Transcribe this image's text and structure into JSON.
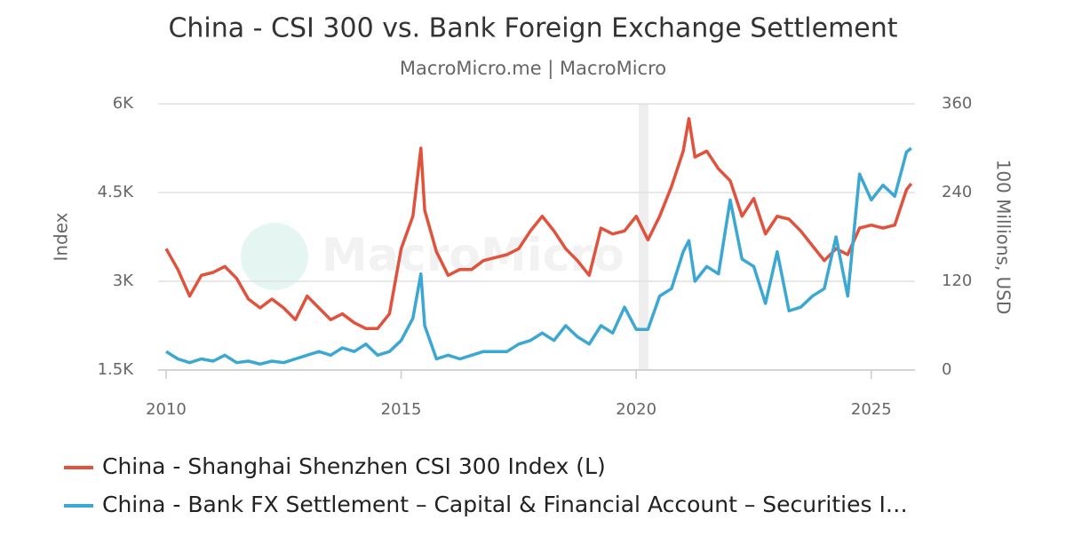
{
  "chart_data": {
    "type": "line",
    "title": "China - CSI 300 vs. Bank Foreign Exchange Settlement",
    "subtitle": "MacroMicro.me | MacroMicro",
    "watermark": "MacroMicro",
    "y_label": "Index",
    "y2_label": "100 Millions, USD",
    "x": [
      2010.0,
      2010.25,
      2010.5,
      2010.75,
      2011.0,
      2011.25,
      2011.5,
      2011.75,
      2012.0,
      2012.25,
      2012.5,
      2012.75,
      2013.0,
      2013.25,
      2013.5,
      2013.75,
      2014.0,
      2014.25,
      2014.5,
      2014.75,
      2015.0,
      2015.25,
      2015.42,
      2015.5,
      2015.75,
      2016.0,
      2016.25,
      2016.5,
      2016.75,
      2017.0,
      2017.25,
      2017.5,
      2017.75,
      2018.0,
      2018.25,
      2018.5,
      2018.75,
      2019.0,
      2019.25,
      2019.5,
      2019.75,
      2020.0,
      2020.25,
      2020.5,
      2020.75,
      2021.0,
      2021.12,
      2021.25,
      2021.5,
      2021.75,
      2022.0,
      2022.25,
      2022.5,
      2022.75,
      2023.0,
      2023.25,
      2023.5,
      2023.75,
      2024.0,
      2024.25,
      2024.5,
      2024.75,
      2025.0,
      2025.25,
      2025.5,
      2025.75,
      2025.85
    ],
    "series": [
      {
        "name": "China - Shanghai Shenzhen CSI 300 Index (L)",
        "color": "#e1523d",
        "axis": "y",
        "values": [
          3550,
          3200,
          2750,
          3100,
          3150,
          3250,
          3050,
          2700,
          2550,
          2700,
          2550,
          2350,
          2750,
          2550,
          2350,
          2450,
          2300,
          2200,
          2200,
          2450,
          3550,
          4100,
          5250,
          4200,
          3500,
          3100,
          3200,
          3200,
          3350,
          3400,
          3450,
          3550,
          3850,
          4100,
          3850,
          3550,
          3350,
          3100,
          3900,
          3800,
          3850,
          4100,
          3700,
          4100,
          4600,
          5200,
          5750,
          5100,
          5200,
          4900,
          4700,
          4100,
          4400,
          3800,
          4100,
          4050,
          3850,
          3600,
          3350,
          3550,
          3450,
          3900,
          3950,
          3900,
          3950,
          4550,
          4650
        ]
      },
      {
        "name": "China - Bank FX Settlement – Capital & Financial Account – Securities I…",
        "color": "#3ba7d3",
        "axis": "y2",
        "values": [
          25,
          15,
          10,
          15,
          12,
          20,
          10,
          12,
          8,
          12,
          10,
          15,
          20,
          25,
          20,
          30,
          25,
          35,
          20,
          25,
          40,
          70,
          130,
          60,
          15,
          20,
          15,
          20,
          25,
          25,
          25,
          35,
          40,
          50,
          40,
          60,
          45,
          35,
          60,
          50,
          85,
          55,
          55,
          100,
          110,
          160,
          175,
          120,
          140,
          130,
          230,
          150,
          140,
          90,
          160,
          80,
          85,
          100,
          110,
          180,
          100,
          265,
          230,
          250,
          235,
          295,
          300
        ]
      }
    ],
    "xlim": [
      2009.83,
      2025.93
    ],
    "xticks": [
      2010,
      2015,
      2020,
      2025
    ],
    "ylim": [
      1500,
      6000
    ],
    "yticks": [
      {
        "value": 1500,
        "label": "1.5K"
      },
      {
        "value": 3000,
        "label": "3K"
      },
      {
        "value": 4500,
        "label": "4.5K"
      },
      {
        "value": 6000,
        "label": "6K"
      }
    ],
    "y2lim": [
      0,
      360
    ],
    "y2ticks": [
      0,
      120,
      240,
      360
    ],
    "grid": true
  }
}
